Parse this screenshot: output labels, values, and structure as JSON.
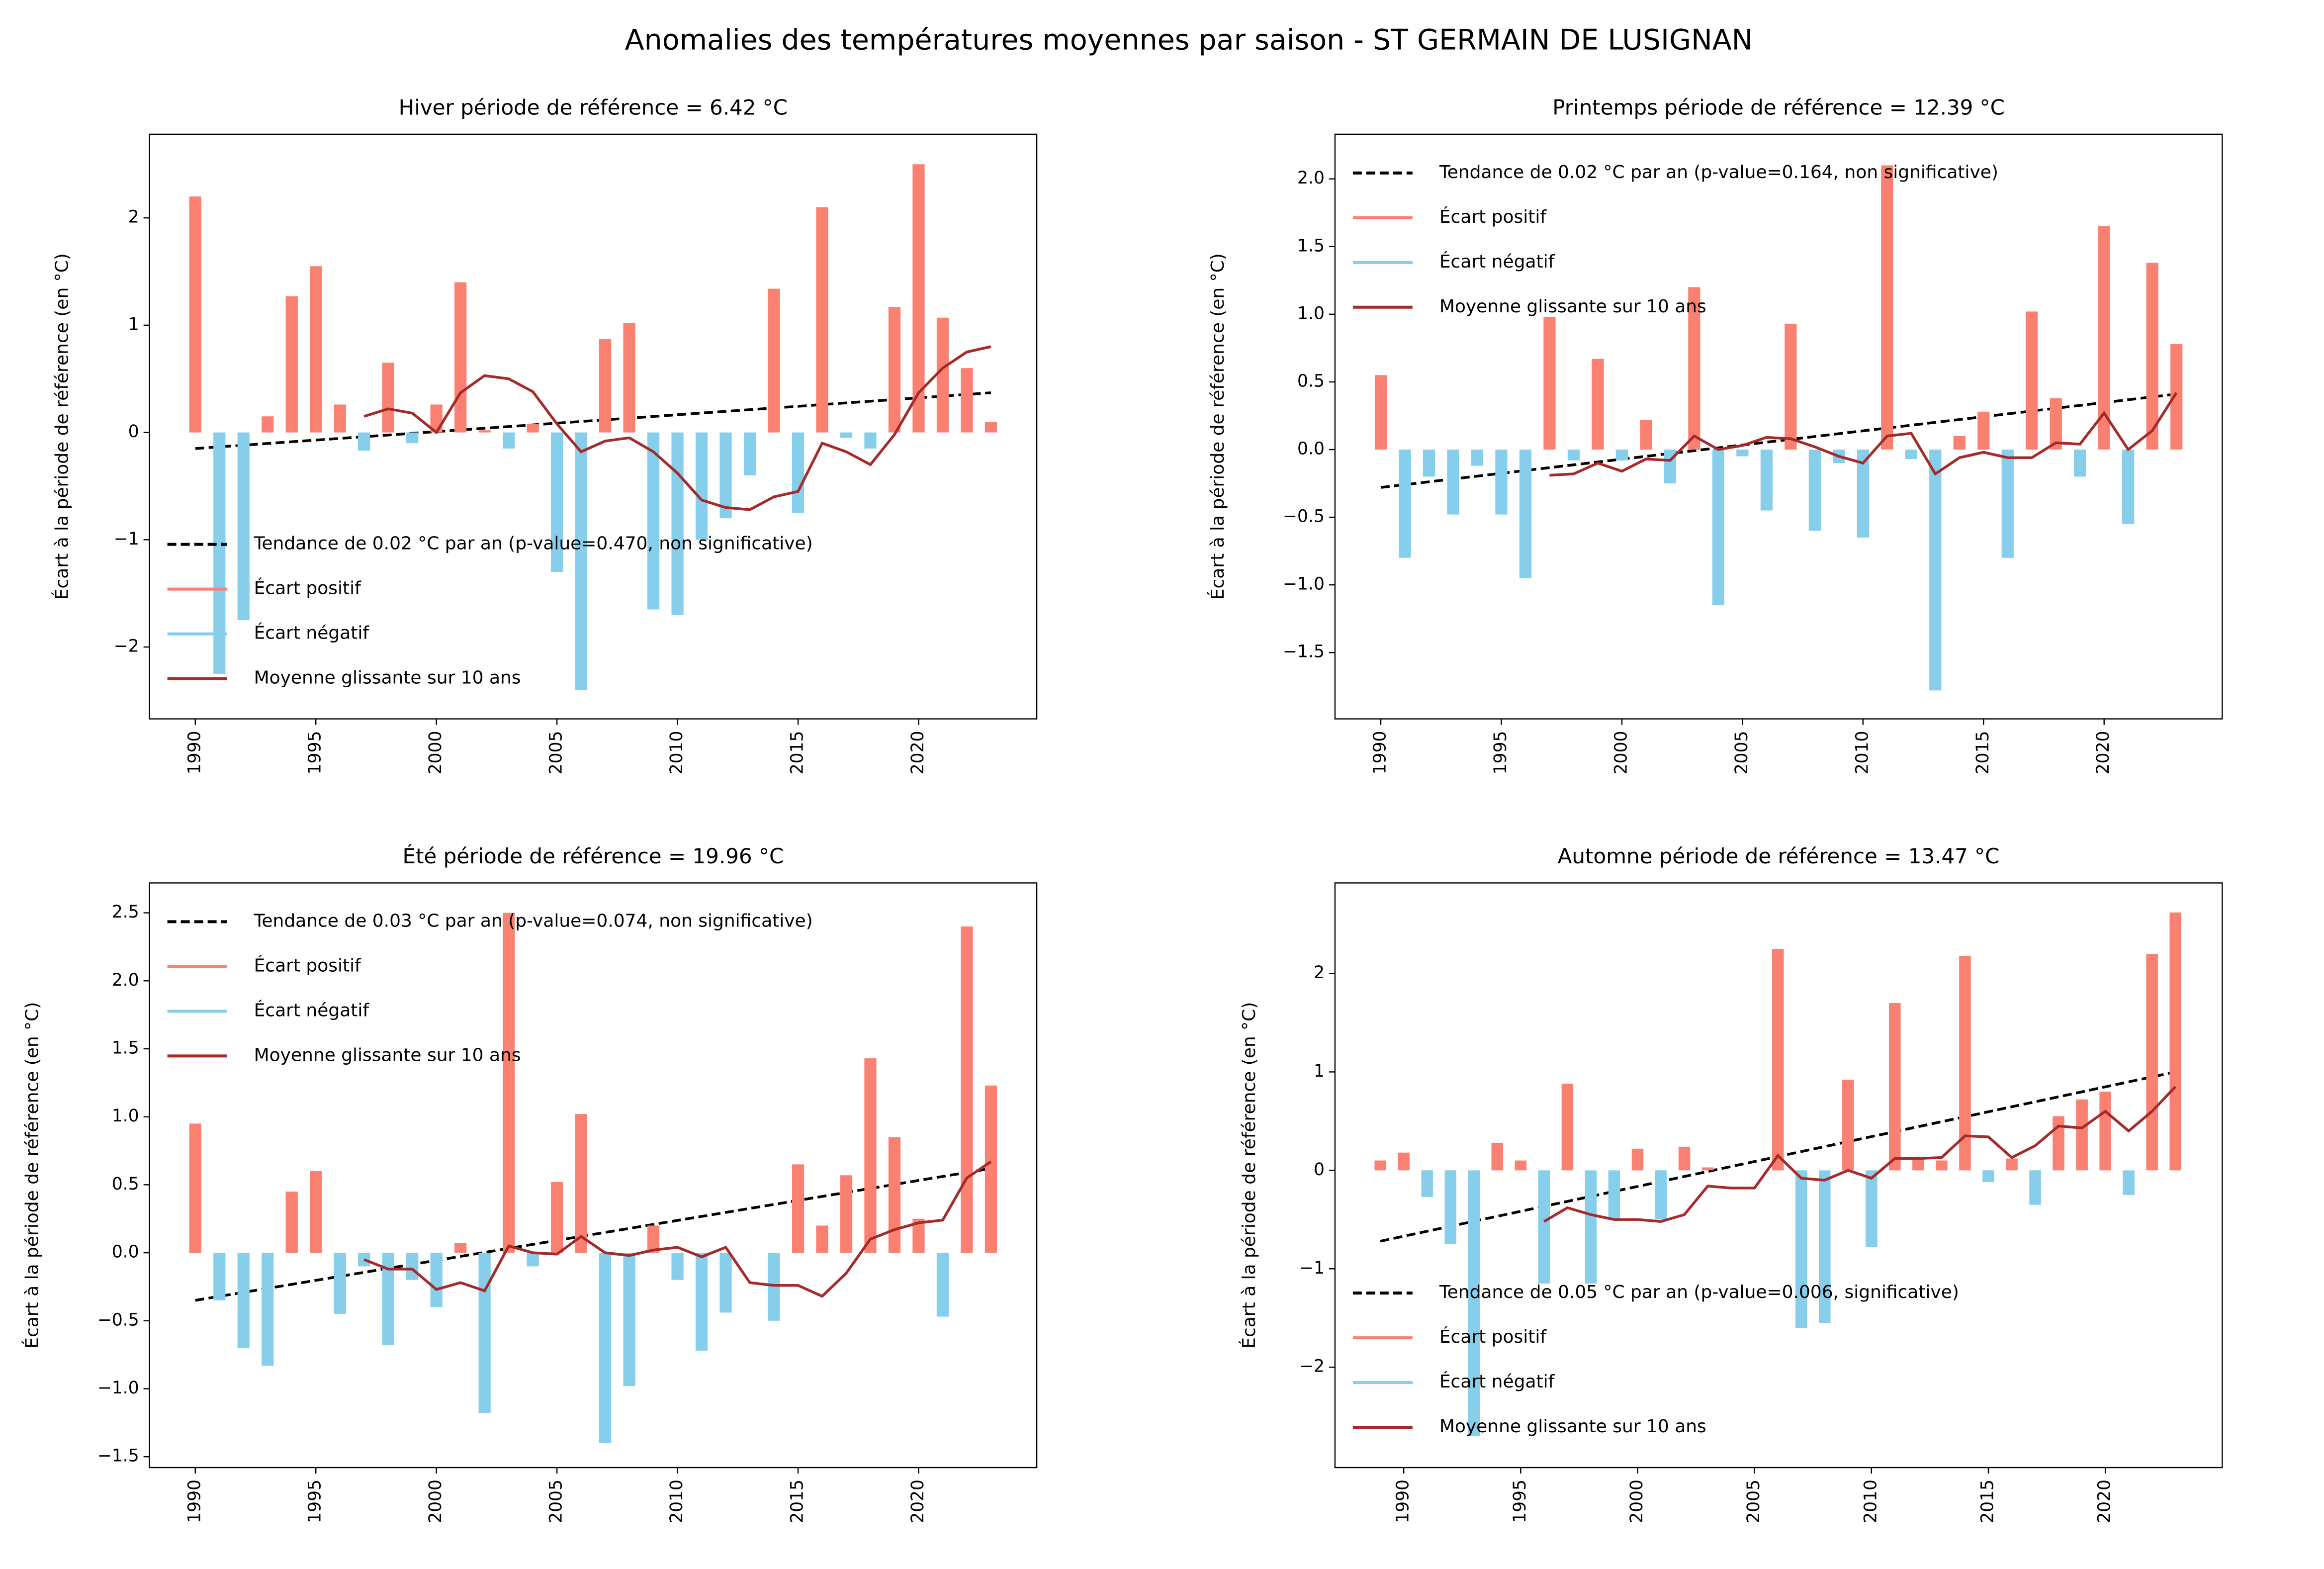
{
  "title": "Anomalies des températures moyennes par saison - ST GERMAIN DE LUSIGNAN",
  "chart_data": [
    {
      "type": "bar",
      "title": "Hiver période de référence = 6.42 °C",
      "ylabel": "Écart à la période de référence (en °C)",
      "x": [
        1990,
        1991,
        1992,
        1993,
        1994,
        1995,
        1996,
        1997,
        1998,
        1999,
        2000,
        2001,
        2002,
        2003,
        2004,
        2005,
        2006,
        2007,
        2008,
        2009,
        2010,
        2011,
        2012,
        2013,
        2014,
        2015,
        2016,
        2017,
        2018,
        2019,
        2020,
        2021,
        2022,
        2023
      ],
      "xlim": [
        1988.1,
        2024.9
      ],
      "xticks": [
        1990,
        1995,
        2000,
        2005,
        2010,
        2015,
        2020
      ],
      "ylim": [
        -2.67,
        2.78
      ],
      "yticks": [
        {
          "value": -2,
          "label": "−2"
        },
        {
          "value": -1,
          "label": "−1"
        },
        0,
        1,
        2
      ],
      "legend": "lower left",
      "series": [
        {
          "name": "Tendance de 0.02 °C par an (p-value=0.470, non significative)",
          "type": "line",
          "style": "dashed",
          "color": "#000000",
          "x": [
            1990,
            2023
          ],
          "values": [
            -0.15,
            0.37
          ]
        },
        {
          "name": "Écart positif",
          "color": "#fa8072",
          "values": [
            2.2,
            null,
            null,
            0.15,
            1.27,
            1.55,
            0.26,
            null,
            0.65,
            null,
            0.26,
            1.4,
            0.02,
            null,
            0.08,
            null,
            null,
            0.87,
            1.02,
            null,
            null,
            null,
            null,
            null,
            1.34,
            null,
            2.1,
            null,
            null,
            1.17,
            2.5,
            1.07,
            0.6,
            0.1
          ]
        },
        {
          "name": "Écart négatif",
          "color": "#87ceeb",
          "values": [
            null,
            -2.25,
            -1.75,
            null,
            null,
            null,
            null,
            -0.17,
            null,
            -0.1,
            null,
            null,
            null,
            -0.15,
            null,
            -1.3,
            -2.4,
            null,
            null,
            -1.65,
            -1.7,
            -1.0,
            -0.8,
            -0.4,
            null,
            -0.75,
            null,
            -0.05,
            -0.15,
            null,
            null,
            null,
            null,
            null
          ]
        },
        {
          "name": "Moyenne glissante sur 10 ans",
          "type": "line",
          "color": "#a52a2a",
          "values": [
            null,
            null,
            null,
            null,
            null,
            null,
            null,
            0.15,
            0.22,
            0.18,
            0.0,
            0.37,
            0.53,
            0.5,
            0.38,
            0.08,
            -0.18,
            -0.08,
            -0.05,
            -0.18,
            -0.38,
            -0.63,
            -0.7,
            -0.72,
            -0.6,
            -0.55,
            -0.1,
            -0.18,
            -0.3,
            -0.02,
            0.37,
            0.6,
            0.75,
            0.8
          ]
        }
      ]
    },
    {
      "type": "bar",
      "title": "Printemps période de référence = 12.39 °C",
      "ylabel": "Écart à la période de référence (en °C)",
      "x": [
        1990,
        1991,
        1992,
        1993,
        1994,
        1995,
        1996,
        1997,
        1998,
        1999,
        2000,
        2001,
        2002,
        2003,
        2004,
        2005,
        2006,
        2007,
        2008,
        2009,
        2010,
        2011,
        2012,
        2013,
        2014,
        2015,
        2016,
        2017,
        2018,
        2019,
        2020,
        2021,
        2022,
        2023
      ],
      "xlim": [
        1988.1,
        2024.9
      ],
      "xticks": [
        1990,
        1995,
        2000,
        2005,
        2010,
        2015,
        2020
      ],
      "ylim": [
        -1.99,
        2.33
      ],
      "yticks": [
        {
          "value": -1.5,
          "label": "−1.5"
        },
        {
          "value": -1,
          "label": "−1.0"
        },
        {
          "value": -0.5,
          "label": "−0.5"
        },
        {
          "value": 0,
          "label": "0.0"
        },
        0.5,
        {
          "value": 1,
          "label": "1.0"
        },
        1.5,
        {
          "value": 2,
          "label": "2.0"
        }
      ],
      "legend": "upper left",
      "series": [
        {
          "name": "Tendance de 0.02 °C par an (p-value=0.164, non significative)",
          "type": "line",
          "style": "dashed",
          "color": "#000000",
          "x": [
            1990,
            2023
          ],
          "values": [
            -0.28,
            0.41
          ]
        },
        {
          "name": "Écart positif",
          "color": "#fa8072",
          "values": [
            0.55,
            null,
            null,
            null,
            null,
            null,
            null,
            0.98,
            null,
            0.67,
            null,
            0.22,
            null,
            1.2,
            null,
            null,
            null,
            0.93,
            null,
            null,
            null,
            2.1,
            null,
            null,
            0.1,
            0.28,
            null,
            1.02,
            0.38,
            null,
            1.65,
            null,
            1.38,
            0.78
          ]
        },
        {
          "name": "Écart négatif",
          "color": "#87ceeb",
          "values": [
            null,
            -0.8,
            -0.2,
            -0.48,
            -0.12,
            -0.48,
            -0.95,
            null,
            -0.08,
            null,
            -0.08,
            null,
            -0.25,
            null,
            -1.15,
            -0.05,
            -0.45,
            null,
            -0.6,
            -0.1,
            -0.65,
            null,
            -0.07,
            -1.78,
            null,
            null,
            -0.8,
            null,
            null,
            -0.2,
            null,
            -0.55,
            null,
            null
          ]
        },
        {
          "name": "Moyenne glissante sur 10 ans",
          "type": "line",
          "color": "#a52a2a",
          "values": [
            null,
            null,
            null,
            null,
            null,
            null,
            null,
            -0.19,
            -0.18,
            -0.1,
            -0.16,
            -0.07,
            -0.08,
            0.1,
            0.0,
            0.03,
            0.09,
            0.08,
            0.02,
            -0.05,
            -0.1,
            0.1,
            0.12,
            -0.18,
            -0.06,
            -0.02,
            -0.06,
            -0.06,
            0.05,
            0.04,
            0.27,
            0.0,
            0.14,
            0.42
          ]
        }
      ]
    },
    {
      "type": "bar",
      "title": "Été période de référence = 19.96 °C",
      "ylabel": "Écart à la période de référence (en °C)",
      "x": [
        1990,
        1991,
        1992,
        1993,
        1994,
        1995,
        1996,
        1997,
        1998,
        1999,
        2000,
        2001,
        2002,
        2003,
        2004,
        2005,
        2006,
        2007,
        2008,
        2009,
        2010,
        2011,
        2012,
        2013,
        2014,
        2015,
        2016,
        2017,
        2018,
        2019,
        2020,
        2021,
        2022,
        2023
      ],
      "xlim": [
        1988.1,
        2024.9
      ],
      "xticks": [
        1990,
        1995,
        2000,
        2005,
        2010,
        2015,
        2020
      ],
      "ylim": [
        -1.58,
        2.72
      ],
      "yticks": [
        {
          "value": -1.5,
          "label": "−1.5"
        },
        {
          "value": -1,
          "label": "−1.0"
        },
        {
          "value": -0.5,
          "label": "−0.5"
        },
        {
          "value": 0,
          "label": "0.0"
        },
        0.5,
        {
          "value": 1,
          "label": "1.0"
        },
        1.5,
        {
          "value": 2,
          "label": "2.0"
        },
        2.5
      ],
      "legend": "upper left",
      "series": [
        {
          "name": "Tendance de 0.03 °C par an (p-value=0.074, non significative)",
          "type": "line",
          "style": "dashed",
          "color": "#000000",
          "x": [
            1990,
            2023
          ],
          "values": [
            -0.35,
            0.62
          ]
        },
        {
          "name": "Écart positif",
          "color": "#fa8072",
          "values": [
            0.95,
            null,
            null,
            null,
            0.45,
            0.6,
            null,
            null,
            null,
            null,
            null,
            0.07,
            null,
            2.5,
            null,
            0.52,
            1.02,
            null,
            null,
            0.2,
            null,
            null,
            null,
            0.0,
            null,
            0.65,
            0.2,
            0.57,
            1.43,
            0.85,
            0.25,
            null,
            2.4,
            1.23
          ]
        },
        {
          "name": "Écart négatif",
          "color": "#87ceeb",
          "values": [
            null,
            -0.35,
            -0.7,
            -0.83,
            null,
            null,
            -0.45,
            -0.1,
            -0.68,
            -0.2,
            -0.4,
            null,
            -1.18,
            null,
            -0.1,
            null,
            null,
            -1.4,
            -0.98,
            null,
            -0.2,
            -0.72,
            -0.44,
            null,
            -0.5,
            null,
            null,
            null,
            null,
            null,
            null,
            -0.47,
            null,
            null
          ]
        },
        {
          "name": "Moyenne glissante sur 10 ans",
          "type": "line",
          "color": "#a52a2a",
          "values": [
            null,
            null,
            null,
            null,
            null,
            null,
            null,
            -0.05,
            -0.12,
            -0.12,
            -0.27,
            -0.22,
            -0.28,
            0.05,
            0.0,
            -0.01,
            0.12,
            0.0,
            -0.02,
            0.02,
            0.04,
            -0.03,
            0.04,
            -0.22,
            -0.24,
            -0.24,
            -0.32,
            -0.15,
            0.1,
            0.17,
            0.22,
            0.24,
            0.55,
            0.67
          ]
        }
      ]
    },
    {
      "type": "bar",
      "title": "Automne période de référence = 13.47 °C",
      "ylabel": "Écart à la période de référence (en °C)",
      "x": [
        1989,
        1990,
        1991,
        1992,
        1993,
        1994,
        1995,
        1996,
        1997,
        1998,
        1999,
        2000,
        2001,
        2002,
        2003,
        2004,
        2005,
        2006,
        2007,
        2008,
        2009,
        2010,
        2011,
        2012,
        2013,
        2014,
        2015,
        2016,
        2017,
        2018,
        2019,
        2020,
        2021,
        2022,
        2023
      ],
      "xlim": [
        1987.06,
        2025.0
      ],
      "xticks": [
        1990,
        1995,
        2000,
        2005,
        2010,
        2015,
        2020
      ],
      "ylim": [
        -3.02,
        2.92
      ],
      "yticks": [
        {
          "value": -2,
          "label": "−2"
        },
        {
          "value": -1,
          "label": "−1"
        },
        0,
        1,
        2
      ],
      "legend": "lower left",
      "series": [
        {
          "name": "Tendance de 0.05 °C par an (p-value=0.006, significative)",
          "type": "line",
          "style": "dashed",
          "color": "#000000",
          "x": [
            1989,
            2023
          ],
          "values": [
            -0.72,
            1.0
          ]
        },
        {
          "name": "Écart positif",
          "color": "#fa8072",
          "values": [
            0.1,
            0.18,
            null,
            null,
            null,
            0.28,
            0.1,
            null,
            0.88,
            null,
            null,
            0.22,
            null,
            0.24,
            0.03,
            0.0,
            0.0,
            2.25,
            null,
            null,
            0.92,
            null,
            1.7,
            0.12,
            0.1,
            2.18,
            null,
            0.12,
            null,
            0.55,
            0.72,
            0.8,
            null,
            2.2,
            2.62
          ]
        },
        {
          "name": "Écart négatif",
          "color": "#87ceeb",
          "values": [
            null,
            null,
            -0.27,
            -0.75,
            -2.7,
            null,
            null,
            -1.15,
            null,
            -1.15,
            -0.5,
            null,
            -0.5,
            null,
            null,
            null,
            null,
            null,
            -1.6,
            -1.55,
            null,
            -0.78,
            null,
            null,
            null,
            null,
            -0.12,
            null,
            -0.35,
            null,
            null,
            null,
            -0.25,
            null,
            null
          ]
        },
        {
          "name": "Moyenne glissante sur 10 ans",
          "type": "line",
          "color": "#a52a2a",
          "values": [
            null,
            null,
            null,
            null,
            null,
            null,
            null,
            -0.52,
            -0.38,
            -0.45,
            -0.5,
            -0.5,
            -0.52,
            -0.45,
            -0.16,
            -0.18,
            -0.18,
            0.15,
            -0.08,
            -0.1,
            0.0,
            -0.08,
            0.12,
            0.12,
            0.13,
            0.35,
            0.34,
            0.13,
            0.25,
            0.45,
            0.43,
            0.6,
            0.4,
            0.6,
            0.85
          ]
        }
      ]
    }
  ]
}
